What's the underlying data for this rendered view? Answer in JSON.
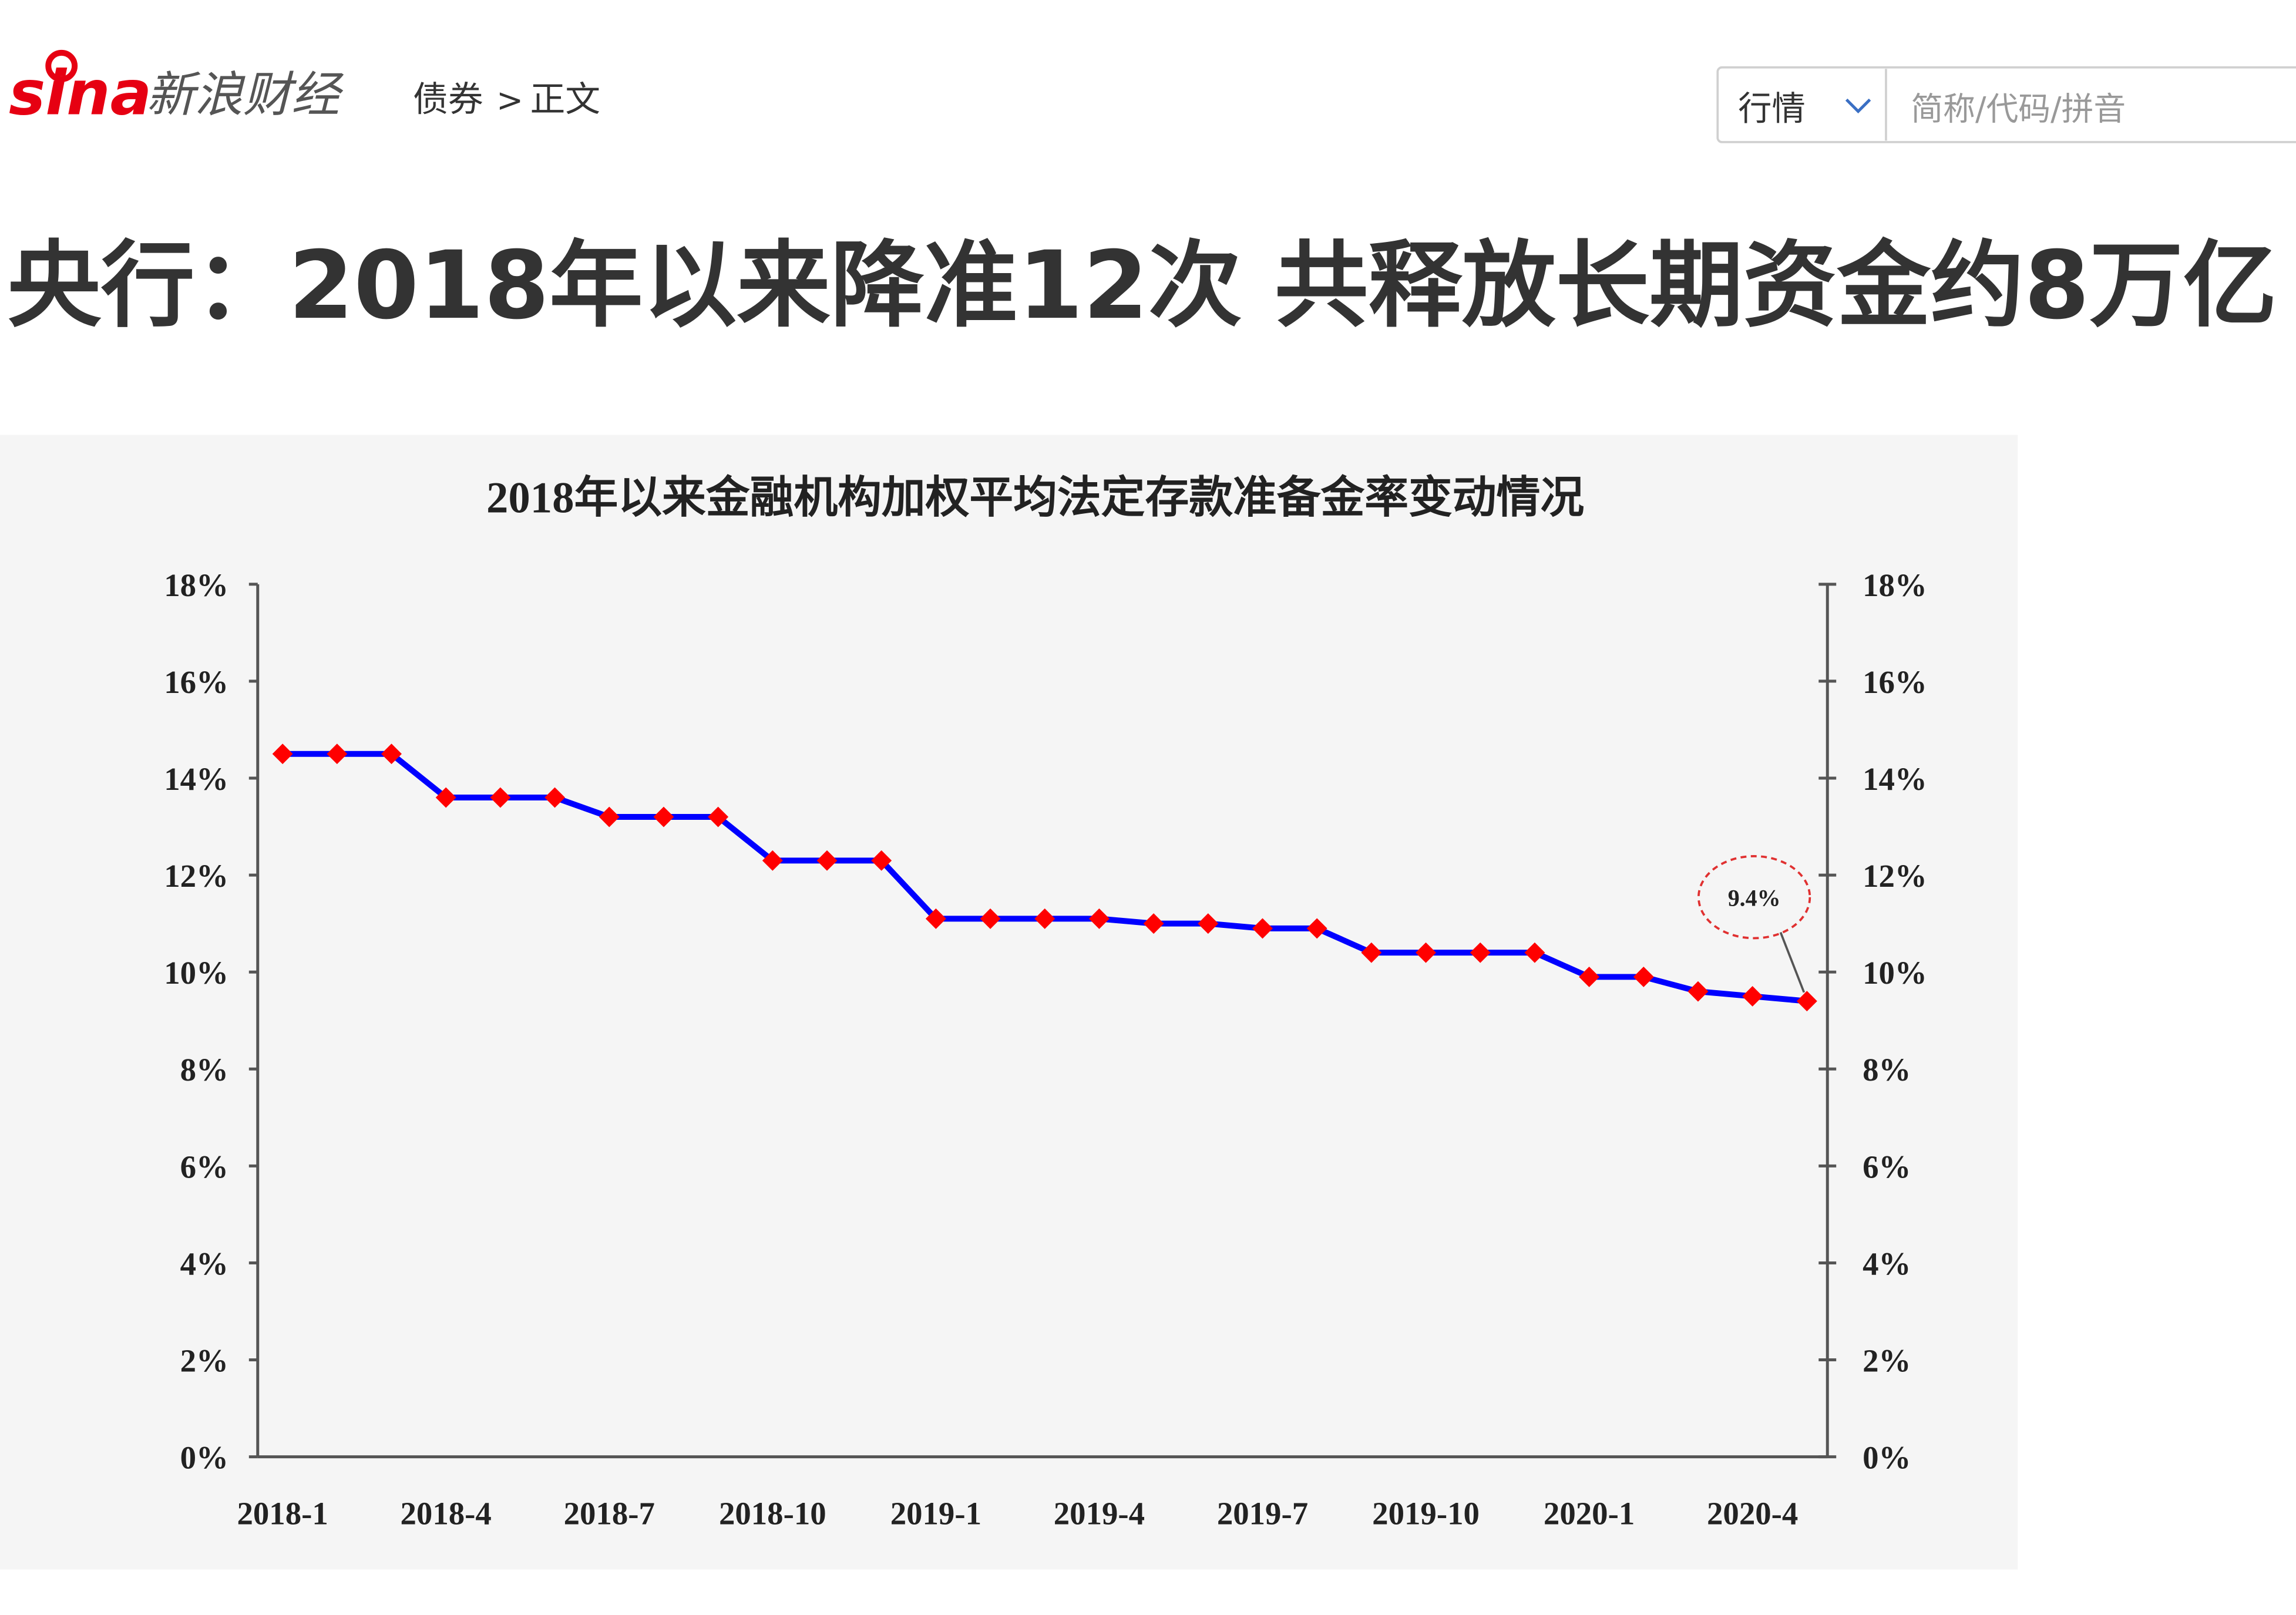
{
  "header": {
    "logo": "sina",
    "brand": "新浪财经",
    "breadcrumb": [
      "债券",
      ">",
      "正文"
    ]
  },
  "search": {
    "market_select": "行情",
    "placeholder": "简称/代码/拼音"
  },
  "article": {
    "title": "央行：2018年以来降准12次 共释放长期资金约8万亿"
  },
  "chart_data": {
    "type": "line",
    "title": "2018年以来金融机构加权平均法定存款准备金率变动情况",
    "categories": [
      "2018-1",
      null,
      null,
      "2018-4",
      null,
      null,
      "2018-7",
      null,
      null,
      "2018-10",
      null,
      null,
      "2019-1",
      null,
      null,
      "2019-4",
      null,
      null,
      "2019-7",
      null,
      null,
      "2019-10",
      null,
      null,
      "2020-1",
      null,
      null,
      "2020-4",
      null
    ],
    "values": [
      14.5,
      14.5,
      14.5,
      13.6,
      13.6,
      13.6,
      13.2,
      13.2,
      13.2,
      12.3,
      12.3,
      12.3,
      11.1,
      11.1,
      11.1,
      11.1,
      11.0,
      11.0,
      10.9,
      10.9,
      10.4,
      10.4,
      10.4,
      10.4,
      9.9,
      9.9,
      9.6,
      9.5,
      9.4
    ],
    "color": "#0000ff",
    "marker_color": "#ff0000",
    "ylim": [
      0,
      18
    ],
    "yticks": [
      {
        "value": 0,
        "label": "0%"
      },
      {
        "value": 2,
        "label": "2%"
      },
      {
        "value": 4,
        "label": "4%"
      },
      {
        "value": 6,
        "label": "6%"
      },
      {
        "value": 8,
        "label": "8%"
      },
      {
        "value": 10,
        "label": "10%"
      },
      {
        "value": 12,
        "label": "12%"
      },
      {
        "value": 14,
        "label": "14%"
      },
      {
        "value": 16,
        "label": "16%"
      },
      {
        "value": 18,
        "label": "18%"
      }
    ],
    "y2lim": [
      0,
      18
    ],
    "y2ticks": [
      {
        "value": 0,
        "label": "0%"
      },
      {
        "value": 2,
        "label": "2%"
      },
      {
        "value": 4,
        "label": "4%"
      },
      {
        "value": 6,
        "label": "6%"
      },
      {
        "value": 8,
        "label": "8%"
      },
      {
        "value": 10,
        "label": "10%"
      },
      {
        "value": 12,
        "label": "12%"
      },
      {
        "value": 14,
        "label": "14%"
      },
      {
        "value": 16,
        "label": "16%"
      },
      {
        "value": 18,
        "label": "18%"
      }
    ],
    "annotations": [
      {
        "text": "9.4%"
      }
    ]
  }
}
